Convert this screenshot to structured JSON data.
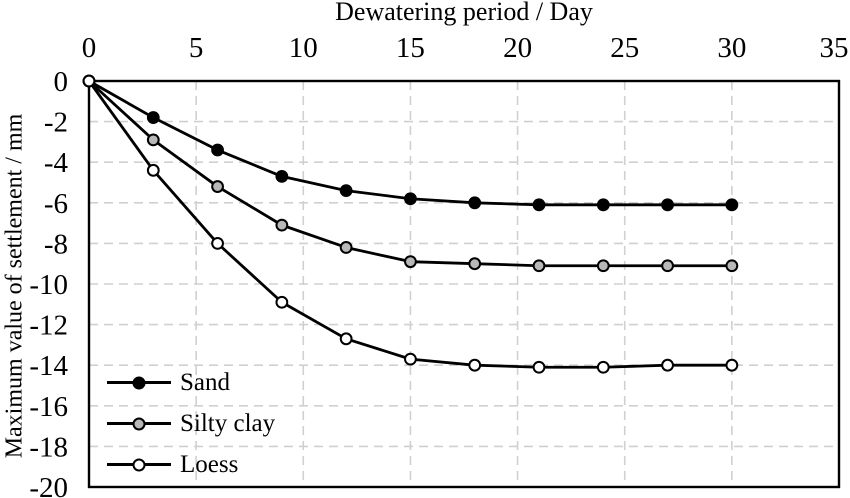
{
  "chart_data": {
    "type": "line",
    "title": "",
    "x_axis": {
      "label": "Dewatering period / Day",
      "position": "top",
      "range": [
        0,
        35
      ],
      "ticks": [
        0,
        5,
        10,
        15,
        20,
        25,
        30,
        35
      ]
    },
    "y_axis": {
      "label": "Maximum value of settlement / mm",
      "range": [
        -20,
        0
      ],
      "ticks": [
        0,
        -2,
        -4,
        -6,
        -8,
        -10,
        -12,
        -14,
        -16,
        -18,
        -20
      ]
    },
    "x": [
      0,
      3,
      6,
      9,
      12,
      15,
      18,
      21,
      24,
      27,
      30
    ],
    "series": [
      {
        "name": "Sand",
        "marker_fill": "#000000",
        "values": [
          0,
          -1.8,
          -3.4,
          -4.7,
          -5.4,
          -5.8,
          -6.0,
          -6.1,
          -6.1,
          -6.1,
          -6.1
        ]
      },
      {
        "name": "Silty clay",
        "marker_fill": "#b8b8b8",
        "values": [
          0,
          -2.9,
          -5.2,
          -7.1,
          -8.2,
          -8.9,
          -9.0,
          -9.1,
          -9.1,
          -9.1,
          -9.1
        ]
      },
      {
        "name": "Loess",
        "marker_fill": "#ffffff",
        "values": [
          0,
          -4.4,
          -8.0,
          -10.9,
          -12.7,
          -13.7,
          -14.0,
          -14.1,
          -14.1,
          -14.0,
          -14.0
        ]
      }
    ],
    "line_color": "#000000",
    "grid": {
      "show": true,
      "style": "dashed",
      "color": "#d0d0d0"
    },
    "legend_position": "inside bottom-left"
  }
}
